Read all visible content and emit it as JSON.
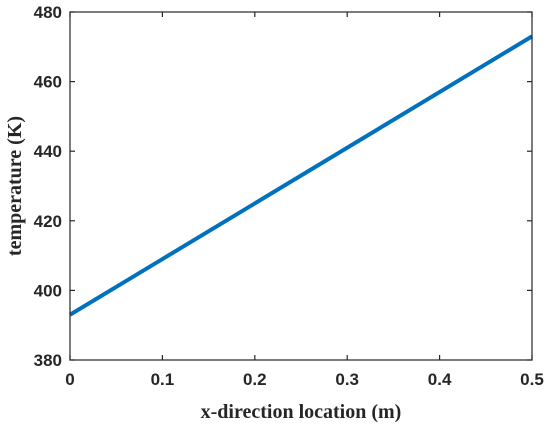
{
  "chart_data": {
    "type": "line",
    "title": "",
    "xlabel": "x-direction location (m)",
    "ylabel": "temperature (K)",
    "xlim": [
      0,
      0.5
    ],
    "ylim": [
      380,
      480
    ],
    "xticks": [
      0,
      0.1,
      0.2,
      0.3,
      0.4,
      0.5
    ],
    "xtick_labels": [
      "0",
      "0.1",
      "0.2",
      "0.3",
      "0.4",
      "0.5"
    ],
    "yticks": [
      380,
      400,
      420,
      440,
      460,
      480
    ],
    "ytick_labels": [
      "380",
      "400",
      "420",
      "440",
      "460",
      "480"
    ],
    "grid": false,
    "legend": "none",
    "series": [
      {
        "color": "#0072bd",
        "x": [
          0,
          0.5
        ],
        "y": [
          393,
          473
        ]
      }
    ]
  }
}
